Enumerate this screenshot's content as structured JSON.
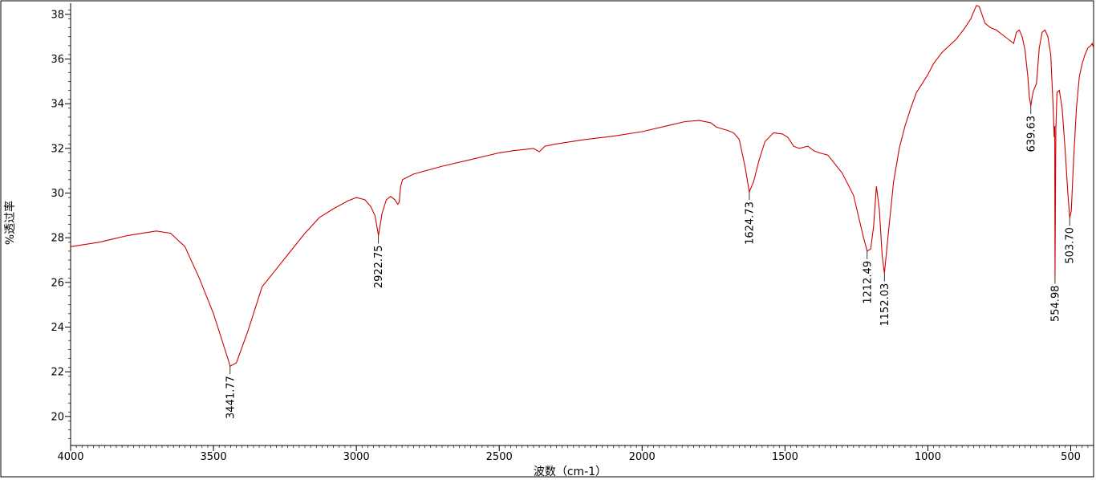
{
  "chart_data": {
    "type": "line",
    "title": "",
    "xlabel": "波数（cm-1）",
    "ylabel": "%透过率",
    "xlim": [
      4000,
      420
    ],
    "ylim": [
      18.7,
      38.5
    ],
    "x_reversed": true,
    "grid": false,
    "x_ticks": [
      4000,
      3500,
      3000,
      2500,
      2000,
      1500,
      1000,
      500
    ],
    "x_tick_labels": [
      "4000",
      "3500",
      "3000",
      "2500",
      "2000",
      "1500",
      "1000",
      "500"
    ],
    "y_ticks": [
      20,
      22,
      24,
      26,
      28,
      30,
      32,
      34,
      36,
      38
    ],
    "y_tick_labels": [
      "20",
      "22",
      "24",
      "26",
      "28",
      "30",
      "32",
      "34",
      "36",
      "38"
    ],
    "series": [
      {
        "color": "#cc0000",
        "x": [
          4000,
          3900,
          3800,
          3700,
          3650,
          3600,
          3550,
          3500,
          3450,
          3441.77,
          3420,
          3380,
          3330,
          3280,
          3230,
          3180,
          3130,
          3080,
          3030,
          3000,
          2970,
          2950,
          2935,
          2922.75,
          2910,
          2895,
          2880,
          2865,
          2855,
          2850,
          2845,
          2838,
          2800,
          2700,
          2600,
          2500,
          2450,
          2380,
          2360,
          2340,
          2300,
          2200,
          2100,
          2000,
          1900,
          1850,
          1800,
          1760,
          1740,
          1700,
          1680,
          1660,
          1640,
          1624.73,
          1610,
          1590,
          1570,
          1540,
          1510,
          1490,
          1470,
          1450,
          1420,
          1400,
          1380,
          1350,
          1300,
          1260,
          1240,
          1225,
          1212.49,
          1200,
          1190,
          1180,
          1170,
          1160,
          1152.03,
          1140,
          1120,
          1100,
          1080,
          1060,
          1040,
          1020,
          1000,
          980,
          950,
          900,
          870,
          850,
          840,
          830,
          820,
          800,
          780,
          760,
          740,
          720,
          700,
          690,
          680,
          670,
          660,
          650,
          645,
          639.63,
          635,
          630,
          620,
          610,
          600,
          590,
          580,
          570,
          562,
          558,
          556,
          554.98,
          552,
          548,
          540,
          530,
          520,
          510,
          503.7,
          498,
          490,
          480,
          470,
          460,
          450,
          440,
          430,
          425,
          420
        ],
        "y": [
          27.6,
          27.8,
          28.1,
          28.3,
          28.2,
          27.6,
          26.2,
          24.6,
          22.6,
          22.25,
          22.4,
          23.8,
          25.8,
          26.6,
          27.4,
          28.2,
          28.9,
          29.3,
          29.65,
          29.8,
          29.7,
          29.4,
          29.0,
          28.1,
          29.1,
          29.7,
          29.85,
          29.7,
          29.5,
          29.6,
          30.3,
          30.6,
          30.85,
          31.2,
          31.5,
          31.8,
          31.9,
          32.0,
          31.85,
          32.1,
          32.2,
          32.4,
          32.55,
          32.75,
          33.05,
          33.2,
          33.25,
          33.15,
          32.95,
          32.8,
          32.7,
          32.4,
          31.2,
          30.05,
          30.5,
          31.5,
          32.3,
          32.7,
          32.65,
          32.5,
          32.1,
          32.0,
          32.1,
          31.9,
          31.8,
          31.7,
          30.9,
          29.9,
          28.8,
          28.0,
          27.4,
          27.5,
          28.5,
          30.3,
          29.3,
          27.2,
          26.4,
          28.0,
          30.5,
          32.0,
          33.0,
          33.8,
          34.5,
          34.9,
          35.3,
          35.8,
          36.3,
          36.9,
          37.4,
          37.8,
          38.1,
          38.4,
          38.35,
          37.6,
          37.4,
          37.3,
          37.1,
          36.9,
          36.7,
          37.2,
          37.3,
          37.0,
          36.4,
          35.2,
          34.3,
          33.9,
          34.3,
          34.6,
          34.9,
          36.5,
          37.2,
          37.3,
          37.0,
          36.2,
          34.0,
          32.5,
          33.0,
          26.3,
          32.9,
          34.5,
          34.6,
          33.8,
          32.0,
          30.0,
          28.9,
          29.2,
          31.5,
          33.8,
          35.2,
          35.8,
          36.2,
          36.5,
          36.6,
          36.7,
          36.5
        ]
      }
    ],
    "peak_annotations": [
      {
        "x": 3441.77,
        "label": "3441.77"
      },
      {
        "x": 2922.75,
        "label": "2922.75"
      },
      {
        "x": 1624.73,
        "label": "1624.73"
      },
      {
        "x": 1212.49,
        "label": "1212.49"
      },
      {
        "x": 1152.03,
        "label": "1152.03"
      },
      {
        "x": 639.63,
        "label": "639.63"
      },
      {
        "x": 554.98,
        "label": "554.98"
      },
      {
        "x": 503.7,
        "label": "503.70"
      }
    ],
    "styles": {
      "line_color": "#cc0000",
      "axis_color": "#000000",
      "frame_color": "#000000"
    }
  }
}
